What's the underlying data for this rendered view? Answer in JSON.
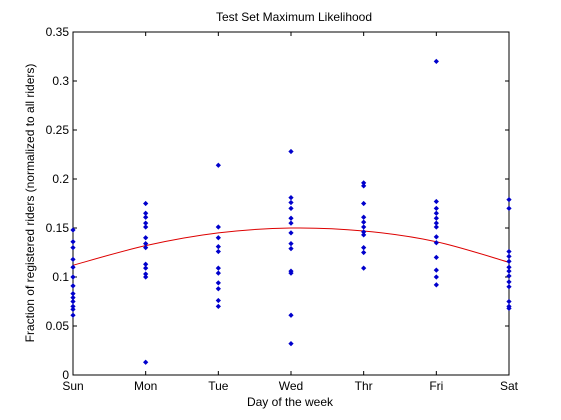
{
  "chart_data": {
    "type": "scatter",
    "title": "Test Set Maximum Likelihood",
    "xlabel": "Day of the week",
    "ylabel": "Fraction of registered riders (normalized to all riders)",
    "categories": [
      "Sun",
      "Mon",
      "Tue",
      "Wed",
      "Thr",
      "Fri",
      "Sat"
    ],
    "xlim": [
      0,
      6
    ],
    "ylim": [
      0,
      0.35
    ],
    "yticks": [
      "0",
      "0.05",
      "0.1",
      "0.15",
      "0.2",
      "0.25",
      "0.3",
      "0.35"
    ],
    "grid": false,
    "marker_color": "#0000cc",
    "fit_color": "#dd0000",
    "series": [
      {
        "type": "scatter",
        "points": [
          [
            0,
            0.148
          ],
          [
            0,
            0.136
          ],
          [
            0,
            0.13
          ],
          [
            0,
            0.118
          ],
          [
            0,
            0.11
          ],
          [
            0,
            0.1
          ],
          [
            0,
            0.091
          ],
          [
            0,
            0.083
          ],
          [
            0,
            0.079
          ],
          [
            0,
            0.075
          ],
          [
            0,
            0.07
          ],
          [
            0,
            0.067
          ],
          [
            0,
            0.061
          ],
          [
            1,
            0.175
          ],
          [
            1,
            0.165
          ],
          [
            1,
            0.161
          ],
          [
            1,
            0.155
          ],
          [
            1,
            0.151
          ],
          [
            1,
            0.14
          ],
          [
            1,
            0.134
          ],
          [
            1,
            0.13
          ],
          [
            1,
            0.113
          ],
          [
            1,
            0.109
          ],
          [
            1,
            0.103
          ],
          [
            1,
            0.1
          ],
          [
            1,
            0.013
          ],
          [
            2,
            0.214
          ],
          [
            2,
            0.151
          ],
          [
            2,
            0.14
          ],
          [
            2,
            0.131
          ],
          [
            2,
            0.126
          ],
          [
            2,
            0.109
          ],
          [
            2,
            0.104
          ],
          [
            2,
            0.094
          ],
          [
            2,
            0.088
          ],
          [
            2,
            0.076
          ],
          [
            2,
            0.07
          ],
          [
            3,
            0.228
          ],
          [
            3,
            0.181
          ],
          [
            3,
            0.176
          ],
          [
            3,
            0.17
          ],
          [
            3,
            0.16
          ],
          [
            3,
            0.155
          ],
          [
            3,
            0.145
          ],
          [
            3,
            0.134
          ],
          [
            3,
            0.129
          ],
          [
            3,
            0.106
          ],
          [
            3,
            0.104
          ],
          [
            3,
            0.061
          ],
          [
            3,
            0.032
          ],
          [
            4,
            0.196
          ],
          [
            4,
            0.193
          ],
          [
            4,
            0.175
          ],
          [
            4,
            0.161
          ],
          [
            4,
            0.156
          ],
          [
            4,
            0.151
          ],
          [
            4,
            0.146
          ],
          [
            4,
            0.143
          ],
          [
            4,
            0.13
          ],
          [
            4,
            0.125
          ],
          [
            4,
            0.109
          ],
          [
            5,
            0.32
          ],
          [
            5,
            0.177
          ],
          [
            5,
            0.17
          ],
          [
            5,
            0.165
          ],
          [
            5,
            0.16
          ],
          [
            5,
            0.155
          ],
          [
            5,
            0.151
          ],
          [
            5,
            0.141
          ],
          [
            5,
            0.135
          ],
          [
            5,
            0.12
          ],
          [
            5,
            0.107
          ],
          [
            5,
            0.1
          ],
          [
            5,
            0.092
          ],
          [
            6,
            0.179
          ],
          [
            6,
            0.17
          ],
          [
            6,
            0.126
          ],
          [
            6,
            0.121
          ],
          [
            6,
            0.116
          ],
          [
            6,
            0.11
          ],
          [
            6,
            0.106
          ],
          [
            6,
            0.101
          ],
          [
            6,
            0.095
          ],
          [
            6,
            0.09
          ],
          [
            6,
            0.075
          ],
          [
            6,
            0.07
          ],
          [
            6,
            0.068
          ]
        ]
      },
      {
        "type": "line",
        "points": [
          [
            0,
            0.112
          ],
          [
            1,
            0.132
          ],
          [
            2,
            0.145
          ],
          [
            3,
            0.15
          ],
          [
            4,
            0.147
          ],
          [
            5,
            0.136
          ],
          [
            6,
            0.115
          ]
        ]
      }
    ]
  }
}
